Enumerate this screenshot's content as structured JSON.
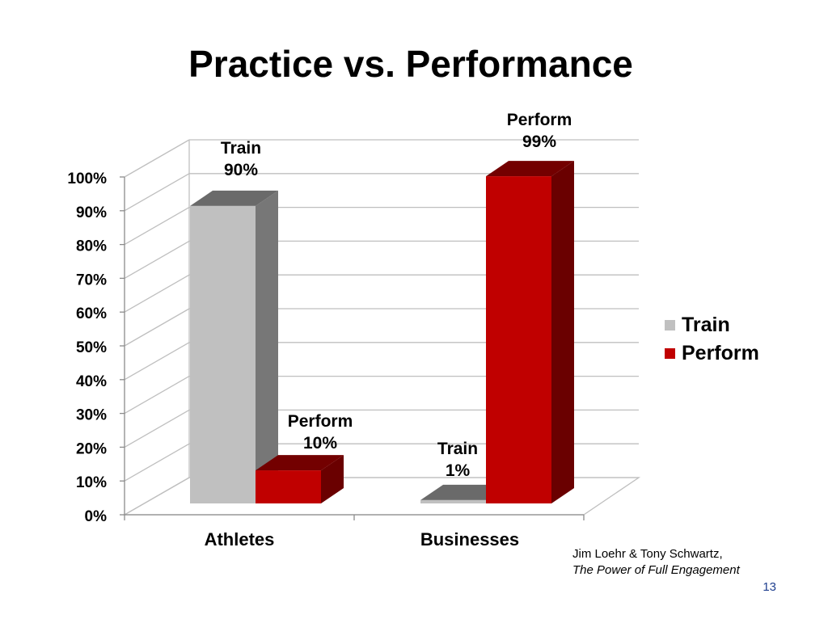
{
  "slide": {
    "title": "Practice vs. Performance",
    "citation_authors": "Jim Loehr & Tony Schwartz,",
    "citation_book": "The Power of Full Engagement",
    "page_number": "13"
  },
  "chart_data": {
    "type": "bar",
    "title": "Practice vs. Performance",
    "categories": [
      "Athletes",
      "Businesses"
    ],
    "series": [
      {
        "name": "Train",
        "values": [
          90,
          1
        ],
        "color": "#c0c0c0",
        "labels": [
          [
            "Train",
            "90%"
          ],
          [
            "Train",
            "1%"
          ]
        ]
      },
      {
        "name": "Perform",
        "values": [
          10,
          99
        ],
        "color": "#c00000",
        "labels": [
          [
            "Perform",
            "10%"
          ],
          [
            "Perform",
            "99%"
          ]
        ]
      }
    ],
    "y_ticks": [
      "0%",
      "10%",
      "20%",
      "30%",
      "40%",
      "50%",
      "60%",
      "70%",
      "80%",
      "90%",
      "100%"
    ],
    "ylim": [
      0,
      100
    ],
    "grid": true,
    "three_d": true,
    "legend_position": "right"
  }
}
